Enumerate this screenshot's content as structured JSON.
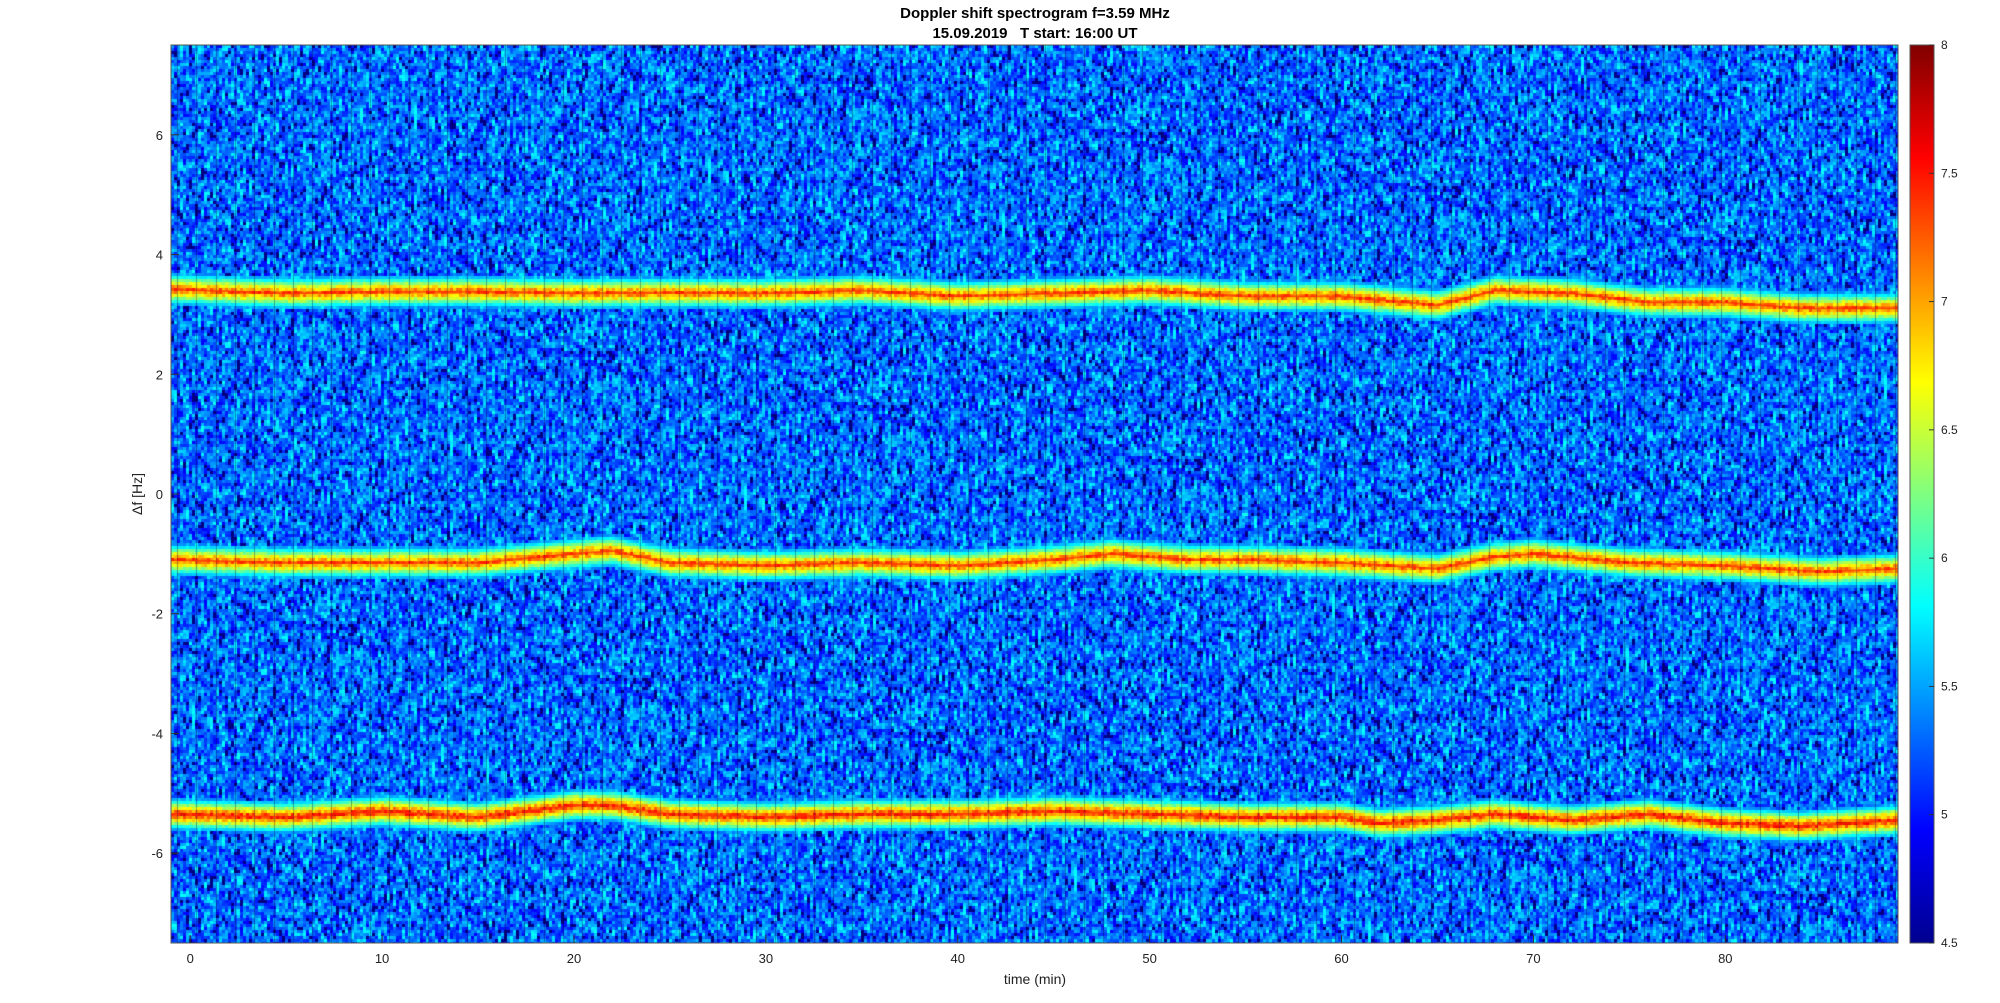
{
  "chart_data": {
    "type": "heatmap",
    "title": "Doppler shift spectrogram f=3.59 MHz",
    "subtitle": "15.09.2019   T start: 16:00 UT",
    "xlabel": "time (min)",
    "ylabel": "Δf [Hz]",
    "xlim": [
      -1,
      89
    ],
    "ylim": [
      -7.5,
      7.5
    ],
    "x_ticks": [
      0,
      10,
      20,
      30,
      40,
      50,
      60,
      70,
      80
    ],
    "x_tick_labels": [
      "0",
      "10",
      "20",
      "30",
      "40",
      "50",
      "60",
      "70",
      "80"
    ],
    "y_ticks": [
      6,
      4,
      2,
      0,
      -2,
      -4,
      -6
    ],
    "y_tick_labels": [
      "6",
      "4",
      "2",
      "0",
      "-2",
      "-4",
      "-6"
    ],
    "colorbar": {
      "colormap": "jet",
      "range": [
        4.5,
        8
      ],
      "ticks": [
        8,
        7.5,
        7,
        6.5,
        6,
        5.5,
        5,
        4.5
      ],
      "tick_labels": [
        "8",
        "7.5",
        "7",
        "6.5",
        "6",
        "5.5",
        "5",
        "4.5"
      ]
    },
    "background_level": 5.3,
    "traces": [
      {
        "peak_level": 7.6,
        "points": [
          [
            -1,
            3.42
          ],
          [
            5,
            3.35
          ],
          [
            10,
            3.38
          ],
          [
            15,
            3.38
          ],
          [
            20,
            3.35
          ],
          [
            25,
            3.36
          ],
          [
            30,
            3.35
          ],
          [
            35,
            3.4
          ],
          [
            40,
            3.3
          ],
          [
            45,
            3.35
          ],
          [
            50,
            3.4
          ],
          [
            55,
            3.3
          ],
          [
            60,
            3.3
          ],
          [
            65,
            3.15
          ],
          [
            68,
            3.4
          ],
          [
            72,
            3.35
          ],
          [
            76,
            3.2
          ],
          [
            80,
            3.2
          ],
          [
            84,
            3.1
          ],
          [
            89,
            3.1
          ]
        ]
      },
      {
        "peak_level": 7.6,
        "points": [
          [
            -1,
            -1.1
          ],
          [
            5,
            -1.15
          ],
          [
            10,
            -1.15
          ],
          [
            15,
            -1.15
          ],
          [
            20,
            -1.0
          ],
          [
            22,
            -0.95
          ],
          [
            25,
            -1.15
          ],
          [
            30,
            -1.2
          ],
          [
            35,
            -1.15
          ],
          [
            40,
            -1.2
          ],
          [
            45,
            -1.1
          ],
          [
            48,
            -1.0
          ],
          [
            52,
            -1.1
          ],
          [
            55,
            -1.1
          ],
          [
            60,
            -1.15
          ],
          [
            65,
            -1.25
          ],
          [
            68,
            -1.05
          ],
          [
            70,
            -1.0
          ],
          [
            75,
            -1.15
          ],
          [
            80,
            -1.2
          ],
          [
            85,
            -1.3
          ],
          [
            89,
            -1.25
          ]
        ]
      },
      {
        "peak_level": 7.8,
        "points": [
          [
            -1,
            -5.35
          ],
          [
            5,
            -5.4
          ],
          [
            10,
            -5.3
          ],
          [
            15,
            -5.4
          ],
          [
            20,
            -5.2
          ],
          [
            22,
            -5.2
          ],
          [
            25,
            -5.35
          ],
          [
            30,
            -5.4
          ],
          [
            35,
            -5.35
          ],
          [
            40,
            -5.35
          ],
          [
            45,
            -5.3
          ],
          [
            50,
            -5.35
          ],
          [
            55,
            -5.4
          ],
          [
            60,
            -5.4
          ],
          [
            62,
            -5.5
          ],
          [
            65,
            -5.45
          ],
          [
            68,
            -5.35
          ],
          [
            72,
            -5.45
          ],
          [
            76,
            -5.35
          ],
          [
            80,
            -5.5
          ],
          [
            84,
            -5.55
          ],
          [
            89,
            -5.45
          ]
        ]
      }
    ]
  }
}
